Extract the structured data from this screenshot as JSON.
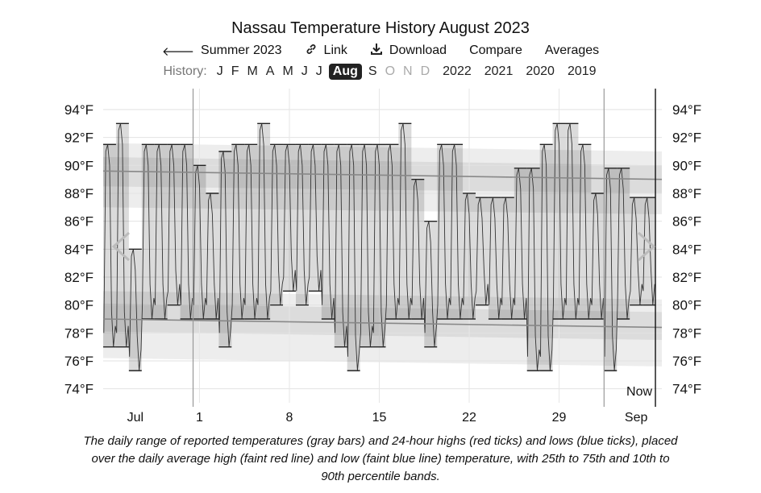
{
  "header": {
    "title": "Nassau Temperature History August 2023"
  },
  "toolbar": {
    "back_label": "Summer 2023",
    "link_label": "Link",
    "download_label": "Download",
    "compare_label": "Compare",
    "averages_label": "Averages"
  },
  "history": {
    "label": "History:",
    "months": [
      {
        "label": "J",
        "state": "normal"
      },
      {
        "label": "F",
        "state": "normal"
      },
      {
        "label": "M",
        "state": "normal"
      },
      {
        "label": "A",
        "state": "normal"
      },
      {
        "label": "M",
        "state": "normal"
      },
      {
        "label": "J",
        "state": "normal"
      },
      {
        "label": "J",
        "state": "normal"
      },
      {
        "label": "Aug",
        "state": "active"
      },
      {
        "label": "S",
        "state": "normal"
      },
      {
        "label": "O",
        "state": "dim"
      },
      {
        "label": "N",
        "state": "dim"
      },
      {
        "label": "D",
        "state": "dim"
      }
    ],
    "years": [
      "2022",
      "2021",
      "2020",
      "2019"
    ]
  },
  "chart_data": {
    "type": "bar",
    "title": "Nassau Temperature History August 2023",
    "units": "°F",
    "ylim": [
      73,
      95.5
    ],
    "y_ticks": [
      74,
      76,
      78,
      80,
      82,
      84,
      86,
      88,
      90,
      92,
      94
    ],
    "y_tick_suffix": "°F",
    "x_domain_days": [
      -6.5,
      37
    ],
    "x_ticks": [
      {
        "day": -4,
        "label": "Jul"
      },
      {
        "day": 1,
        "label": "1"
      },
      {
        "day": 8,
        "label": "8"
      },
      {
        "day": 15,
        "label": "15"
      },
      {
        "day": 22,
        "label": "22"
      },
      {
        "day": 29,
        "label": "29"
      },
      {
        "day": 35,
        "label": "Sep"
      }
    ],
    "month_boundaries": [
      0.5,
      32.5
    ],
    "now_day": 36.5,
    "now_label": "Now",
    "avg_high": {
      "start": 89.6,
      "end": 89.0
    },
    "avg_low": {
      "start": 79.0,
      "end": 78.4
    },
    "band_25_75": {
      "high": {
        "start": [
          88.5,
          90.6
        ],
        "end": [
          88.0,
          90.0
        ]
      },
      "low": {
        "start": [
          78.1,
          80.1
        ],
        "end": [
          77.5,
          79.5
        ]
      }
    },
    "band_10_90": {
      "high": {
        "start": [
          87.0,
          91.6
        ],
        "end": [
          86.5,
          91.0
        ]
      },
      "low": {
        "start": [
          76.2,
          81.0
        ],
        "end": [
          75.6,
          80.4
        ]
      }
    },
    "daily": [
      {
        "day": -6,
        "low": 77,
        "high": 91.5
      },
      {
        "day": -5,
        "low": 77,
        "high": 93
      },
      {
        "day": -4,
        "low": 75.3,
        "high": 84
      },
      {
        "day": -3,
        "low": 79,
        "high": 91.5
      },
      {
        "day": -2,
        "low": 79,
        "high": 91.5
      },
      {
        "day": -1,
        "low": 80,
        "high": 91.5
      },
      {
        "day": 0,
        "low": 79,
        "high": 91.5
      },
      {
        "day": 1,
        "low": 79,
        "high": 90
      },
      {
        "day": 2,
        "low": 79,
        "high": 88
      },
      {
        "day": 3,
        "low": 77,
        "high": 91
      },
      {
        "day": 4,
        "low": 79,
        "high": 91.5
      },
      {
        "day": 5,
        "low": 79,
        "high": 91.5
      },
      {
        "day": 6,
        "low": 79,
        "high": 93
      },
      {
        "day": 7,
        "low": 80,
        "high": 91.5
      },
      {
        "day": 8,
        "low": 81,
        "high": 91.5
      },
      {
        "day": 9,
        "low": 80,
        "high": 91.5
      },
      {
        "day": 10,
        "low": 81,
        "high": 91.5
      },
      {
        "day": 11,
        "low": 79,
        "high": 91.5
      },
      {
        "day": 12,
        "low": 77,
        "high": 91.5
      },
      {
        "day": 13,
        "low": 75.3,
        "high": 91.5
      },
      {
        "day": 14,
        "low": 77,
        "high": 91.5
      },
      {
        "day": 15,
        "low": 77,
        "high": 91.5
      },
      {
        "day": 16,
        "low": 79,
        "high": 91.5
      },
      {
        "day": 17,
        "low": 79,
        "high": 93
      },
      {
        "day": 18,
        "low": 79,
        "high": 89
      },
      {
        "day": 19,
        "low": 77,
        "high": 86
      },
      {
        "day": 20,
        "low": 79,
        "high": 91.5
      },
      {
        "day": 21,
        "low": 79,
        "high": 91.5
      },
      {
        "day": 22,
        "low": 79,
        "high": 88
      },
      {
        "day": 23,
        "low": 80,
        "high": 87.7
      },
      {
        "day": 24,
        "low": 79,
        "high": 87.7
      },
      {
        "day": 25,
        "low": 79,
        "high": 87.7
      },
      {
        "day": 26,
        "low": 79,
        "high": 89.8
      },
      {
        "day": 27,
        "low": 75.3,
        "high": 89.8
      },
      {
        "day": 28,
        "low": 75.3,
        "high": 91.5
      },
      {
        "day": 29,
        "low": 79,
        "high": 93
      },
      {
        "day": 30,
        "low": 79,
        "high": 93
      },
      {
        "day": 31,
        "low": 79,
        "high": 91.5
      },
      {
        "day": 32,
        "low": 79,
        "high": 88
      },
      {
        "day": 33,
        "low": 75.3,
        "high": 89.8
      },
      {
        "day": 34,
        "low": 79,
        "high": 89.8
      },
      {
        "day": 35,
        "low": 80,
        "high": 87.7
      },
      {
        "day": 36,
        "low": 80,
        "high": 87.7
      }
    ]
  },
  "caption": "The daily range of reported temperatures (gray bars) and 24-hour highs (red ticks) and lows (blue ticks), placed over the daily average high (faint red line) and low (faint blue line) temperature, with 25th to 75th and 10th to 90th percentile bands."
}
